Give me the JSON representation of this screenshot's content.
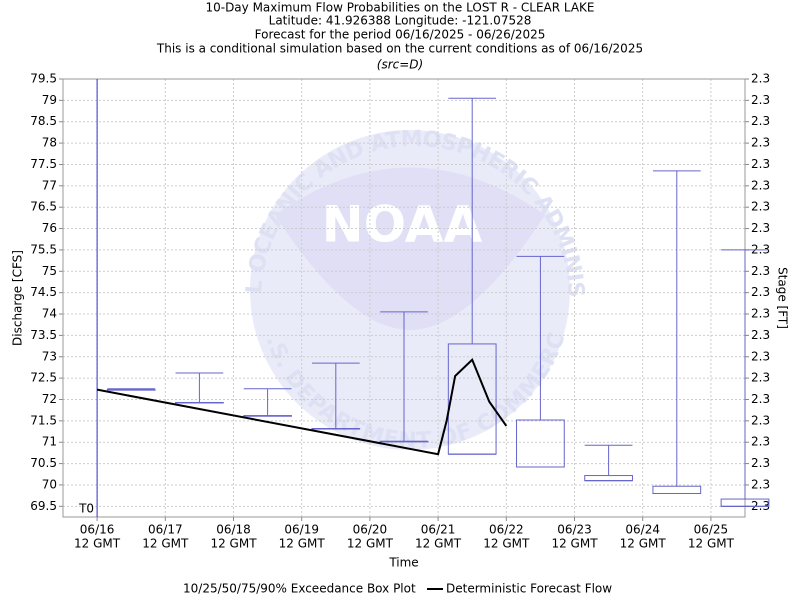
{
  "chart_data": {
    "type": "boxplot",
    "title": [
      "10-Day Maximum Flow Probabilities on the LOST R - CLEAR LAKE",
      "Latitude: 41.926388 Longitude: -121.07528",
      "Forecast for the period 06/16/2025 - 06/26/2025",
      "This is a conditional simulation based on the current conditions as of 06/16/2025"
    ],
    "subtitle": "(src=D)",
    "xlabel": "Time",
    "ylabel": "Discharge [CFS]",
    "y2label": "Stage [FT]",
    "watermark": {
      "logo": "NOAA",
      "top": "NATIONAL OCEANIC AND ATMOSPHERIC ADMINISTRATION",
      "bottom": "U.S. DEPARTMENT OF COMMERCE"
    },
    "t0": {
      "x": "2025-06-16T12:00Z",
      "label": "T0",
      "color": "#3333cc"
    },
    "xlim": [
      "2025-06-16T00:00Z",
      "2025-06-26T00:00Z"
    ],
    "xticks": [
      {
        "value": "2025-06-16T12:00Z",
        "label": [
          "06/16",
          "12 GMT"
        ]
      },
      {
        "value": "2025-06-17T12:00Z",
        "label": [
          "06/17",
          "12 GMT"
        ]
      },
      {
        "value": "2025-06-18T12:00Z",
        "label": [
          "06/18",
          "12 GMT"
        ]
      },
      {
        "value": "2025-06-19T12:00Z",
        "label": [
          "06/19",
          "12 GMT"
        ]
      },
      {
        "value": "2025-06-20T12:00Z",
        "label": [
          "06/20",
          "12 GMT"
        ]
      },
      {
        "value": "2025-06-21T12:00Z",
        "label": [
          "06/21",
          "12 GMT"
        ]
      },
      {
        "value": "2025-06-22T12:00Z",
        "label": [
          "06/22",
          "12 GMT"
        ]
      },
      {
        "value": "2025-06-23T12:00Z",
        "label": [
          "06/23",
          "12 GMT"
        ]
      },
      {
        "value": "2025-06-24T12:00Z",
        "label": [
          "06/24",
          "12 GMT"
        ]
      },
      {
        "value": "2025-06-25T12:00Z",
        "label": [
          "06/25",
          "12 GMT"
        ]
      }
    ],
    "ylim": [
      69.25,
      79.5
    ],
    "yticks": [
      69.5,
      70,
      70.5,
      71,
      71.5,
      72,
      72.5,
      73,
      73.5,
      74,
      74.5,
      75,
      75.5,
      76,
      76.5,
      77,
      77.5,
      78,
      78.5,
      79,
      79.5
    ],
    "y2lim": [
      2.29475,
      2.305
    ],
    "y2ticks": [
      {
        "value": 2.295,
        "label": "2.3"
      },
      {
        "value": 2.2955,
        "label": "2.3"
      },
      {
        "value": 2.296,
        "label": "2.3"
      },
      {
        "value": 2.2965,
        "label": "2.3"
      },
      {
        "value": 2.297,
        "label": "2.3"
      },
      {
        "value": 2.2975,
        "label": "2.3"
      },
      {
        "value": 2.298,
        "label": "2.3"
      },
      {
        "value": 2.2985,
        "label": "2.3"
      },
      {
        "value": 2.299,
        "label": "2.3"
      },
      {
        "value": 2.2995,
        "label": "2.3"
      },
      {
        "value": 2.3,
        "label": "2.3"
      },
      {
        "value": 2.3005,
        "label": "2.3"
      },
      {
        "value": 2.301,
        "label": "2.3"
      },
      {
        "value": 2.3015,
        "label": "2.3"
      },
      {
        "value": 2.302,
        "label": "2.3"
      },
      {
        "value": 2.3025,
        "label": "2.3"
      },
      {
        "value": 2.303,
        "label": "2.3"
      },
      {
        "value": 2.3035,
        "label": "2.3"
      },
      {
        "value": 2.304,
        "label": "2.3"
      },
      {
        "value": 2.3045,
        "label": "2.3"
      },
      {
        "value": 2.305,
        "label": "2.3"
      }
    ],
    "grid": true,
    "box_plot": {
      "name": "10/25/50/75/90% Exceedance Box Plot",
      "color": "#6666cc",
      "x": [
        "2025-06-17T00:00Z",
        "2025-06-18T00:00Z",
        "2025-06-19T00:00Z",
        "2025-06-20T00:00Z",
        "2025-06-21T00:00Z",
        "2025-06-22T00:00Z",
        "2025-06-23T00:00Z",
        "2025-06-24T00:00Z",
        "2025-06-25T00:00Z",
        "2025-06-26T00:00Z"
      ],
      "p10": [
        72.23,
        71.93,
        71.62,
        71.32,
        71.02,
        70.72,
        70.42,
        70.1,
        69.8,
        69.5
      ],
      "p25": [
        72.23,
        71.93,
        71.62,
        71.32,
        71.02,
        70.72,
        70.42,
        70.1,
        69.8,
        69.5
      ],
      "p50": [
        72.23,
        71.93,
        71.62,
        71.32,
        71.02,
        70.72,
        70.42,
        70.1,
        69.8,
        69.5
      ],
      "p75": [
        72.23,
        71.93,
        71.62,
        71.32,
        71.02,
        73.3,
        71.52,
        70.22,
        69.97,
        69.67
      ],
      "p90": [
        72.25,
        72.62,
        72.25,
        72.85,
        74.05,
        79.05,
        75.35,
        70.93,
        77.35,
        75.5
      ]
    },
    "line": {
      "name": "Deterministic Forecast Flow",
      "color": "#000000",
      "x": [
        "2025-06-16T12:00Z",
        "2025-06-21T12:00Z",
        "2025-06-21T15:00Z",
        "2025-06-21T18:00Z",
        "2025-06-22T00:00Z",
        "2025-06-22T06:00Z",
        "2025-06-22T12:00Z"
      ],
      "values": [
        72.23,
        70.72,
        71.5,
        72.55,
        72.93,
        71.95,
        71.38
      ]
    }
  }
}
